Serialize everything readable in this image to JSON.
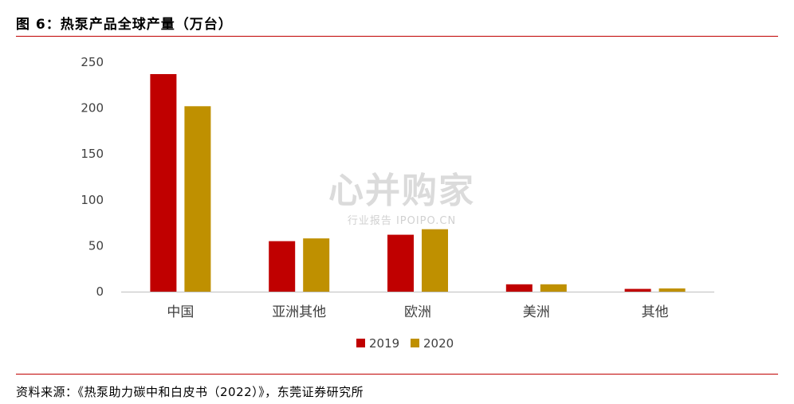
{
  "header": {
    "title": "图 6：热泵产品全球产量（万台）"
  },
  "footer": {
    "source": "资料来源：《热泵助力碳中和白皮书（2022）》，东莞证券研究所"
  },
  "watermark": {
    "main": "心并购家",
    "sub": "行业报告 IPOIPO.CN"
  },
  "chart_data": {
    "type": "bar",
    "title": "热泵产品全球产量（万台）",
    "categories": [
      "中国",
      "亚洲其他",
      "欧洲",
      "美洲",
      "其他"
    ],
    "series": [
      {
        "name": "2019",
        "color": "#c00000",
        "values": [
          237,
          55,
          62,
          8,
          3
        ]
      },
      {
        "name": "2020",
        "color": "#bf9000",
        "values": [
          202,
          58,
          68,
          8,
          3.5
        ]
      }
    ],
    "ylim": [
      0,
      250
    ],
    "yticks": [
      0,
      50,
      100,
      150,
      200,
      250
    ],
    "grid": false,
    "legend": "bottom-center",
    "xlabel": "",
    "ylabel": ""
  }
}
